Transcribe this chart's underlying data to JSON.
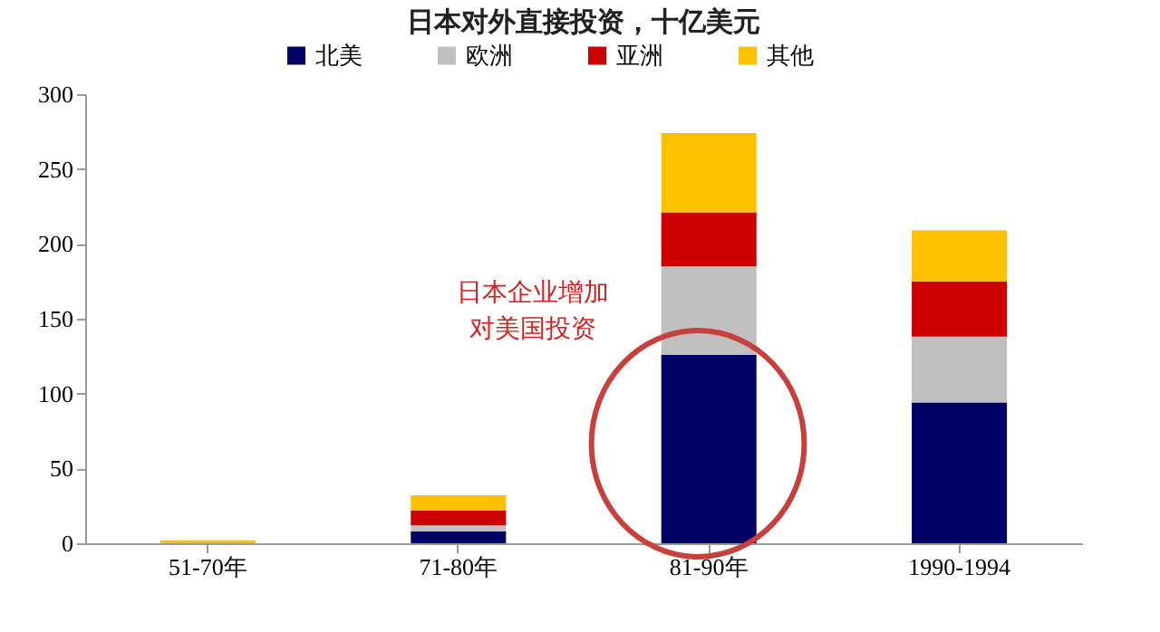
{
  "chart_data": {
    "type": "bar",
    "title": "日本对外直接投资，十亿美元",
    "categories": [
      "51-70年",
      "71-80年",
      "81-90年",
      "1990-1994"
    ],
    "stacked": true,
    "series": [
      {
        "name": "北美",
        "color": "#000066",
        "values": [
          0,
          8,
          126,
          94
        ]
      },
      {
        "name": "欧洲",
        "color": "#c0c0c0",
        "values": [
          0,
          4,
          59,
          44
        ]
      },
      {
        "name": "亚洲",
        "color": "#cc0000",
        "values": [
          0,
          10,
          36,
          37
        ]
      },
      {
        "name": "其他",
        "color": "#ffc000",
        "values": [
          2,
          10,
          53,
          34
        ]
      }
    ],
    "ylim": [
      0,
      300
    ],
    "yticks": [
      0,
      50,
      100,
      150,
      200,
      250,
      300
    ],
    "grid": false,
    "legend": "top",
    "annotations": [
      "日本企业增加",
      "对美国投资"
    ]
  }
}
